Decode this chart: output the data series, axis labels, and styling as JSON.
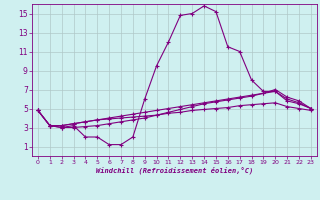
{
  "xlabel": "Windchill (Refroidissement éolien,°C)",
  "x": [
    0,
    1,
    2,
    3,
    4,
    5,
    6,
    7,
    8,
    9,
    10,
    11,
    12,
    13,
    14,
    15,
    16,
    17,
    18,
    19,
    20,
    21,
    22,
    23
  ],
  "line1": [
    4.8,
    3.2,
    3.0,
    3.2,
    2.0,
    2.0,
    1.2,
    1.2,
    2.0,
    6.0,
    9.5,
    12.0,
    14.8,
    15.0,
    15.8,
    15.2,
    11.5,
    11.0,
    8.0,
    6.8,
    6.8,
    5.8,
    5.5,
    5.0
  ],
  "line2": [
    4.8,
    3.2,
    3.0,
    3.0,
    3.1,
    3.2,
    3.4,
    3.6,
    3.8,
    4.0,
    4.3,
    4.6,
    4.9,
    5.2,
    5.5,
    5.7,
    5.9,
    6.1,
    6.3,
    6.6,
    7.0,
    6.2,
    5.8,
    5.0
  ],
  "line3": [
    4.8,
    3.2,
    3.2,
    3.4,
    3.6,
    3.8,
    4.0,
    4.2,
    4.4,
    4.6,
    4.8,
    5.0,
    5.2,
    5.4,
    5.6,
    5.8,
    6.0,
    6.2,
    6.4,
    6.6,
    6.8,
    6.0,
    5.6,
    5.0
  ],
  "line4": [
    4.8,
    3.2,
    3.2,
    3.4,
    3.6,
    3.8,
    3.9,
    4.0,
    4.1,
    4.2,
    4.3,
    4.5,
    4.6,
    4.8,
    4.9,
    5.0,
    5.1,
    5.3,
    5.4,
    5.5,
    5.6,
    5.2,
    5.0,
    4.8
  ],
  "line_color": "#800080",
  "bg_color": "#cff0f0",
  "grid_color": "#b0c8c8",
  "ylim": [
    0,
    16
  ],
  "yticks": [
    1,
    3,
    5,
    7,
    9,
    11,
    13,
    15
  ],
  "xlim_min": -0.5,
  "xlim_max": 23.5,
  "xticks": [
    0,
    1,
    2,
    3,
    4,
    5,
    6,
    7,
    8,
    9,
    10,
    11,
    12,
    13,
    14,
    15,
    16,
    17,
    18,
    19,
    20,
    21,
    22,
    23
  ]
}
